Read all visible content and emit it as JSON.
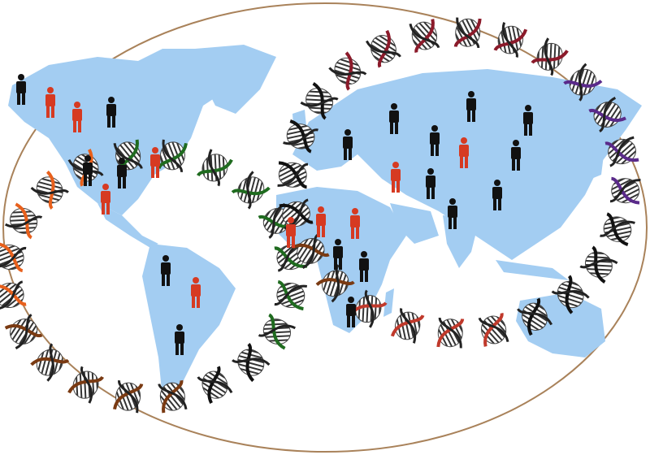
{
  "illustration": {
    "colors": {
      "background": "#ffffff",
      "map_border": "#a9825a",
      "land": "#a3cdf2",
      "person_highlight": "#d63a22",
      "person_default": "#111111",
      "dna_stripes": "#333333"
    },
    "dna_strand_colors": [
      "#e8601c",
      "#1f6b1f",
      "#7a3a12",
      "#111111",
      "#8b1a2a",
      "#5a2a8a",
      "#c0392b"
    ],
    "icons": [
      "person-icon",
      "dna-helix-icon",
      "world-map"
    ]
  }
}
